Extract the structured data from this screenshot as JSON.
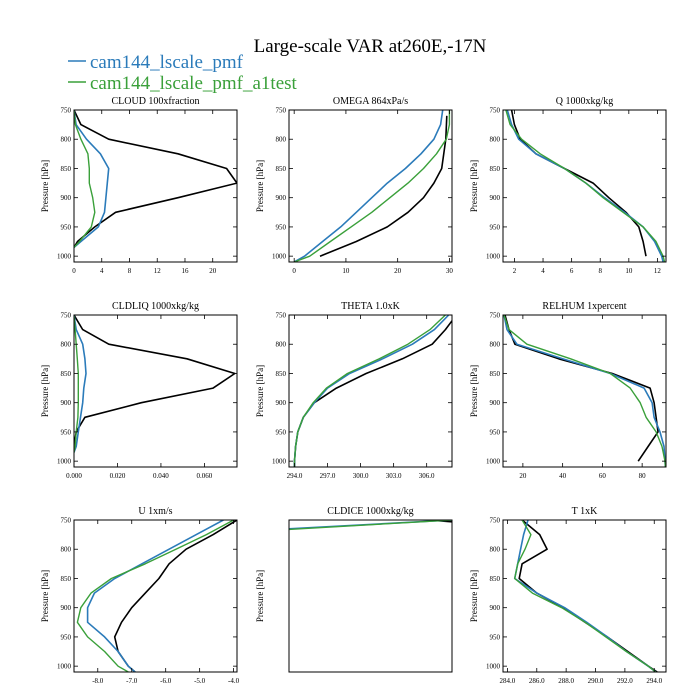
{
  "figure": {
    "title": "Large-scale VAR at260E,-17N",
    "legend": [
      {
        "name": "cam144_lscale_pmf",
        "color": "#2b7bba"
      },
      {
        "name": "cam144_lscale_pmf_a1test",
        "color": "#3aa03a"
      }
    ],
    "ref_color": "#000000"
  },
  "chart_data": [
    {
      "type": "line",
      "title": "CLOUD 100xfraction",
      "ylabel": "Pressure [hPa]",
      "xlim": [
        0,
        23.5
      ],
      "ylim": [
        750,
        1010
      ],
      "xticks": [
        0,
        4,
        8,
        12,
        16,
        20
      ],
      "xticklabels": [
        "0",
        "4",
        "8",
        "12",
        "16",
        "20"
      ],
      "yticks": [
        750,
        800,
        850,
        900,
        950,
        1000
      ],
      "yticklabels": [
        "750",
        "800",
        "850",
        "900",
        "950",
        "1000"
      ],
      "series": [
        {
          "role": "reference",
          "y": [
            750,
            775,
            800,
            825,
            850,
            875,
            900,
            925,
            950,
            975,
            985
          ],
          "x": [
            0,
            1,
            5,
            15,
            22,
            23.5,
            15,
            6,
            3,
            0.5,
            0
          ]
        },
        {
          "role": "s1",
          "y": [
            750,
            775,
            800,
            825,
            850,
            875,
            900,
            925,
            950,
            975,
            985
          ],
          "x": [
            0,
            0.3,
            1.8,
            3.8,
            5,
            4.8,
            4.6,
            4.4,
            3.5,
            1,
            0
          ]
        },
        {
          "role": "s2",
          "y": [
            750,
            775,
            800,
            825,
            850,
            875,
            900,
            925,
            950,
            975,
            985
          ],
          "x": [
            0,
            0.2,
            1,
            2,
            2.2,
            2.2,
            2.7,
            3,
            2.5,
            0.8,
            0
          ]
        }
      ]
    },
    {
      "type": "line",
      "title": "OMEGA 864xPa/s",
      "ylabel": "Pressure [hPa]",
      "xlim": [
        -1,
        30.5
      ],
      "ylim": [
        750,
        1010
      ],
      "xticks": [
        0,
        10,
        20,
        30
      ],
      "xticklabels": [
        "0",
        "10",
        "20",
        "30"
      ],
      "yticks": [
        750,
        800,
        850,
        900,
        950,
        1000
      ],
      "yticklabels": [
        "750",
        "800",
        "850",
        "900",
        "950",
        "1000"
      ],
      "series": [
        {
          "role": "reference",
          "y": [
            760,
            800,
            850,
            875,
            900,
            925,
            950,
            975,
            1000
          ],
          "x": [
            29.5,
            29.3,
            28.5,
            27,
            25,
            22,
            18,
            12,
            5
          ]
        },
        {
          "role": "s1",
          "y": [
            750,
            775,
            800,
            825,
            850,
            875,
            900,
            925,
            950,
            975,
            1000,
            1010
          ],
          "x": [
            28.7,
            28.3,
            27,
            24.5,
            21.5,
            18,
            15,
            12,
            9,
            5.5,
            2,
            0
          ]
        },
        {
          "role": "s2",
          "y": [
            750,
            775,
            800,
            825,
            850,
            875,
            900,
            925,
            950,
            975,
            1000,
            1010
          ],
          "x": [
            30,
            30,
            29.4,
            27.5,
            25,
            22,
            18.5,
            15,
            11,
            7,
            3,
            0
          ]
        }
      ]
    },
    {
      "type": "line",
      "title": "Q 1000xkg/kg",
      "ylabel": "Pressure [hPa]",
      "xlim": [
        1.2,
        12.6
      ],
      "ylim": [
        750,
        1010
      ],
      "xticks": [
        2,
        4,
        6,
        8,
        10,
        12
      ],
      "xticklabels": [
        "2",
        "4",
        "6",
        "8",
        "10",
        "12"
      ],
      "yticks": [
        750,
        800,
        850,
        900,
        950,
        1000
      ],
      "yticklabels": [
        "750",
        "800",
        "850",
        "900",
        "950",
        "1000"
      ],
      "series": [
        {
          "role": "reference",
          "y": [
            750,
            775,
            800,
            825,
            850,
            875,
            900,
            925,
            950,
            975,
            1000
          ],
          "x": [
            1.8,
            2,
            2.4,
            3.5,
            5.5,
            7.5,
            8.6,
            9.8,
            10.7,
            11,
            11.2
          ]
        },
        {
          "role": "s1",
          "y": [
            750,
            775,
            800,
            825,
            850,
            875,
            900,
            925,
            950,
            975,
            1000,
            1010
          ],
          "x": [
            1.5,
            1.8,
            2.3,
            3.5,
            5.5,
            7,
            8.3,
            9.7,
            11,
            11.8,
            12.3,
            12.4
          ]
        },
        {
          "role": "s2",
          "y": [
            750,
            775,
            800,
            825,
            850,
            875,
            900,
            925,
            950,
            975,
            1000,
            1010
          ],
          "x": [
            1.4,
            1.7,
            2.5,
            3.8,
            5.5,
            7,
            8.2,
            9.6,
            11,
            11.9,
            12.4,
            12.5
          ]
        }
      ]
    },
    {
      "type": "line",
      "title": "CLDLIQ 1000xkg/kg",
      "ylabel": "Pressure [hPa]",
      "xlim": [
        0,
        0.075
      ],
      "ylim": [
        750,
        1010
      ],
      "xticks": [
        0,
        0.02,
        0.04,
        0.06
      ],
      "xticklabels": [
        "0.000",
        "0.020",
        "0.040",
        "0.060"
      ],
      "yticks": [
        750,
        800,
        850,
        900,
        950,
        1000
      ],
      "yticklabels": [
        "750",
        "800",
        "850",
        "900",
        "950",
        "1000"
      ],
      "series": [
        {
          "role": "reference",
          "y": [
            750,
            775,
            800,
            825,
            850,
            875,
            900,
            925,
            950,
            975,
            985
          ],
          "x": [
            0,
            0.004,
            0.016,
            0.052,
            0.074,
            0.064,
            0.031,
            0.005,
            0.001,
            0,
            0
          ]
        },
        {
          "role": "s1",
          "y": [
            750,
            775,
            800,
            825,
            850,
            875,
            900,
            925,
            950,
            975,
            985
          ],
          "x": [
            0,
            0.001,
            0.004,
            0.005,
            0.0055,
            0.0045,
            0.004,
            0.003,
            0.002,
            0.001,
            0
          ]
        },
        {
          "role": "s2",
          "y": [
            750,
            775,
            800,
            825,
            850,
            875,
            900,
            925,
            950,
            975,
            985
          ],
          "x": [
            0,
            0.0005,
            0.001,
            0.0015,
            0.002,
            0.002,
            0.002,
            0.0018,
            0.001,
            0.0005,
            0
          ]
        }
      ]
    },
    {
      "type": "line",
      "title": "THETA 1.0xK",
      "ylabel": "Pressure [hPa]",
      "xlim": [
        293.5,
        308.3
      ],
      "ylim": [
        750,
        1010
      ],
      "xticks": [
        294,
        297,
        300,
        303,
        306
      ],
      "xticklabels": [
        "294.0",
        "297.0",
        "300.0",
        "303.0",
        "306.0"
      ],
      "yticks": [
        750,
        800,
        850,
        900,
        950,
        1000
      ],
      "yticklabels": [
        "750",
        "800",
        "850",
        "900",
        "950",
        "1000"
      ],
      "series": [
        {
          "role": "reference",
          "y": [
            760,
            775,
            800,
            825,
            850,
            875,
            900,
            925,
            950,
            975,
            1000,
            1010
          ],
          "x": [
            308.3,
            307.7,
            306.5,
            303.8,
            300.5,
            297.8,
            295.8,
            294.8,
            294.3,
            294.1,
            294,
            294
          ]
        },
        {
          "role": "s1",
          "y": [
            750,
            775,
            800,
            825,
            850,
            875,
            900,
            925,
            950,
            975,
            1000,
            1010
          ],
          "x": [
            308,
            306.7,
            304.7,
            302,
            299,
            297,
            295.8,
            294.8,
            294.3,
            294.1,
            294,
            294
          ]
        },
        {
          "role": "s2",
          "y": [
            750,
            775,
            800,
            825,
            850,
            875,
            900,
            925,
            950,
            975,
            1000,
            1010
          ],
          "x": [
            307.7,
            306.3,
            304.3,
            301.7,
            298.8,
            296.9,
            295.7,
            294.8,
            294.3,
            294.1,
            294,
            294
          ]
        }
      ]
    },
    {
      "type": "line",
      "title": "RELHUM 1xpercent",
      "ylabel": "Pressure [hPa]",
      "xlim": [
        10,
        92
      ],
      "ylim": [
        750,
        1010
      ],
      "xticks": [
        20,
        40,
        60,
        80
      ],
      "xticklabels": [
        "20",
        "40",
        "60",
        "80"
      ],
      "yticks": [
        750,
        800,
        850,
        900,
        950,
        1000
      ],
      "yticklabels": [
        "750",
        "800",
        "850",
        "900",
        "950",
        "1000"
      ],
      "series": [
        {
          "role": "reference",
          "y": [
            750,
            775,
            800,
            825,
            850,
            875,
            900,
            925,
            950,
            975,
            1000
          ],
          "x": [
            11,
            13,
            16,
            38,
            65,
            84,
            86,
            87,
            88,
            83,
            78
          ]
        },
        {
          "role": "s1",
          "y": [
            750,
            775,
            800,
            825,
            850,
            875,
            900,
            925,
            950,
            975,
            1000,
            1010
          ],
          "x": [
            10.5,
            12,
            17,
            40,
            64,
            81,
            85,
            86,
            89,
            91,
            91.5,
            91.7
          ]
        },
        {
          "role": "s2",
          "y": [
            750,
            775,
            800,
            825,
            850,
            875,
            900,
            925,
            950,
            975,
            1000,
            1010
          ],
          "x": [
            10.5,
            13,
            22,
            44,
            64,
            74,
            79,
            82,
            87,
            90,
            91.5,
            91.7
          ]
        }
      ]
    },
    {
      "type": "line",
      "title": "U 1xm/s",
      "ylabel": "Pressure [hPa]",
      "xlim": [
        -8.7,
        -3.9
      ],
      "ylim": [
        750,
        1010
      ],
      "xticks": [
        -8,
        -7,
        -6,
        -5,
        -4
      ],
      "xticklabels": [
        "-8.0",
        "-7.0",
        "-6.0",
        "-5.0",
        "-4.0"
      ],
      "yticks": [
        750,
        800,
        850,
        900,
        950,
        1000
      ],
      "yticklabels": [
        "750",
        "800",
        "850",
        "900",
        "950",
        "1000"
      ],
      "series": [
        {
          "role": "reference",
          "y": [
            750,
            775,
            800,
            825,
            850,
            875,
            900,
            925,
            950,
            975,
            1000,
            1010
          ],
          "x": [
            -3.9,
            -4.6,
            -5.4,
            -5.9,
            -6.2,
            -6.6,
            -7,
            -7.3,
            -7.5,
            -7.4,
            -7.1,
            -6.9
          ]
        },
        {
          "role": "s1",
          "y": [
            750,
            775,
            800,
            825,
            850,
            875,
            900,
            925,
            950,
            975,
            1000,
            1010
          ],
          "x": [
            -4.3,
            -5.1,
            -5.9,
            -6.7,
            -7.5,
            -8.1,
            -8.3,
            -8.3,
            -7.8,
            -7.4,
            -7.1,
            -6.9
          ]
        },
        {
          "role": "s2",
          "y": [
            750,
            775,
            800,
            825,
            850,
            875,
            900,
            925,
            950,
            975,
            1000,
            1010
          ],
          "x": [
            -4,
            -4.8,
            -5.7,
            -6.6,
            -7.6,
            -8.2,
            -8.5,
            -8.6,
            -8.3,
            -7.8,
            -7.4,
            -7.1
          ]
        }
      ]
    },
    {
      "type": "line",
      "title": "CLDICE 1000xkg/kg",
      "ylabel": "Pressure [hPa]",
      "xlim": [
        0,
        1
      ],
      "ylim": [
        750,
        1010
      ],
      "xticks": [],
      "xticklabels": [],
      "yticks": [],
      "yticklabels": [],
      "series": [
        {
          "role": "reference",
          "y": [
            750,
            753
          ],
          "x": [
            0.85,
            1
          ]
        },
        {
          "role": "s1",
          "y": [
            765,
            750
          ],
          "x": [
            0,
            1
          ]
        },
        {
          "role": "s2",
          "y": [
            766,
            750
          ],
          "x": [
            0,
            1
          ]
        }
      ]
    },
    {
      "type": "line",
      "title": "T 1xK",
      "ylabel": "Pressure [hPa]",
      "xlim": [
        283.7,
        294.8
      ],
      "ylim": [
        750,
        1010
      ],
      "xticks": [
        284,
        286,
        288,
        290,
        292,
        294
      ],
      "xticklabels": [
        "284.0",
        "286.0",
        "288.0",
        "290.0",
        "292.0",
        "294.0"
      ],
      "yticks": [
        750,
        800,
        850,
        900,
        950,
        1000
      ],
      "yticklabels": [
        "750",
        "800",
        "850",
        "900",
        "950",
        "1000"
      ],
      "series": [
        {
          "role": "reference",
          "y": [
            750,
            775,
            790,
            800,
            825,
            850,
            875,
            900,
            925,
            950,
            975,
            1000,
            1010
          ],
          "x": [
            285,
            286.2,
            286.5,
            286.7,
            285,
            284.8,
            286,
            287.8,
            289.3,
            290.8,
            292.2,
            293.6,
            294.2
          ]
        },
        {
          "role": "s1",
          "y": [
            750,
            775,
            800,
            825,
            850,
            875,
            900,
            925,
            950,
            975,
            1000,
            1010
          ],
          "x": [
            285.4,
            285.1,
            284.9,
            284.7,
            284.5,
            286,
            287.9,
            289.4,
            290.8,
            292.1,
            293.6,
            294.1
          ]
        },
        {
          "role": "s2",
          "y": [
            750,
            775,
            800,
            825,
            850,
            875,
            900,
            925,
            950,
            975,
            1000,
            1010
          ],
          "x": [
            285,
            285.6,
            285.2,
            284.7,
            284.5,
            285.7,
            287.7,
            289.3,
            290.7,
            292.1,
            293.6,
            294.1
          ]
        }
      ]
    }
  ]
}
